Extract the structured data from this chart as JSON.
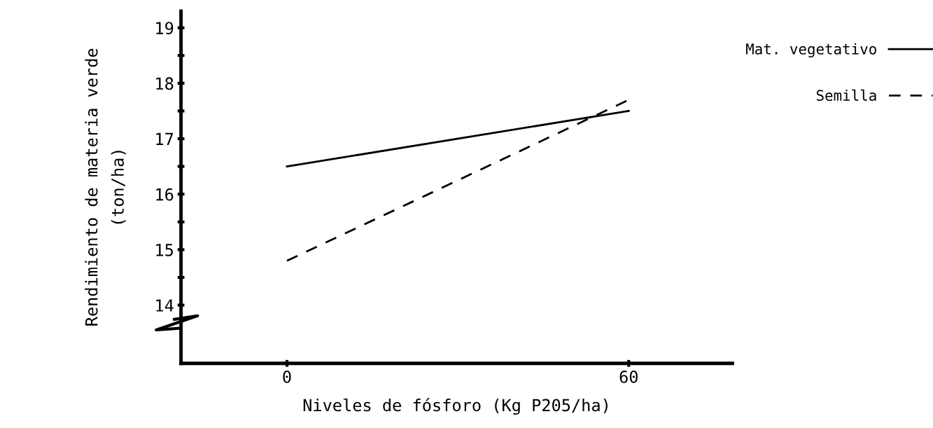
{
  "chart_data": {
    "type": "line",
    "xlabel": "Niveles de fósforo (Kg P205/ha)",
    "ylabel": "Rendimiento de materia verde\n(ton/ha)",
    "x": [
      0,
      60
    ],
    "series": [
      {
        "name": "Mat. vegetativo",
        "color": "#000000",
        "values": [
          16.5,
          17.5
        ],
        "line_style": "solid"
      },
      {
        "name": "Semilla",
        "color": "#000000",
        "values": [
          14.8,
          17.7
        ],
        "line_style": "dashed"
      }
    ],
    "xlim": [
      -18.6,
      78.2
    ],
    "ylim": [
      12.95,
      19.3
    ],
    "xticks": [
      0,
      60
    ],
    "yticks": [
      14,
      {
        "value": 14.5,
        "label": null
      },
      15,
      {
        "value": 15.5,
        "label": null
      },
      16,
      {
        "value": 16.5,
        "label": null
      },
      17,
      {
        "value": 17.5,
        "label": null
      },
      18,
      {
        "value": 18.5,
        "label": null
      },
      19
    ],
    "grid": false,
    "legend": "right",
    "marker": "none"
  }
}
